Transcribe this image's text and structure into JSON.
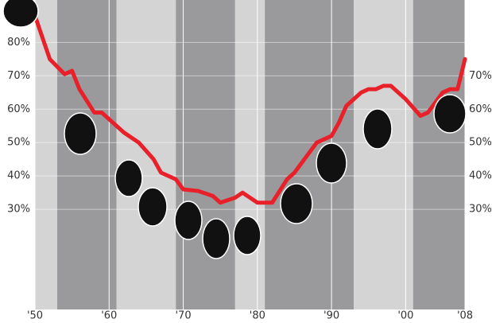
{
  "chart_data": {
    "type": "line",
    "x": [
      1950,
      1952,
      1954,
      1955,
      1956,
      1958,
      1959,
      1961,
      1962,
      1964,
      1966,
      1967,
      1969,
      1970,
      1972,
      1974,
      1975,
      1977,
      1978,
      1980,
      1982,
      1984,
      1985,
      1987,
      1988,
      1990,
      1991,
      1992,
      1994,
      1995,
      1996,
      1997,
      1998,
      1999,
      2000,
      2002,
      2003,
      2004,
      2005,
      2006,
      2007,
      2008
    ],
    "values": [
      88,
      75,
      70.5,
      71.5,
      66,
      59,
      59,
      55,
      53,
      50,
      45,
      41,
      39,
      36,
      35.5,
      34,
      32,
      33.5,
      35,
      32,
      32,
      39,
      41,
      47,
      50,
      52,
      56,
      61,
      65,
      66,
      66,
      67,
      67,
      65,
      63,
      58,
      59,
      62,
      65,
      66,
      66,
      75
    ],
    "color": "#e8202a",
    "xlim": [
      1950,
      2008
    ],
    "ylim": [
      0,
      92
    ],
    "xticks": [
      {
        "value": 1950,
        "label": "'50"
      },
      {
        "value": 1960,
        "label": "'60"
      },
      {
        "value": 1970,
        "label": "'70"
      },
      {
        "value": 1980,
        "label": "'80"
      },
      {
        "value": 1990,
        "label": "'90"
      },
      {
        "value": 2000,
        "label": "'00"
      },
      {
        "value": 2008,
        "label": "'08"
      }
    ],
    "yticks": [
      {
        "value": 80,
        "label": "80%"
      },
      {
        "value": 70,
        "label": "70%"
      },
      {
        "value": 60,
        "label": "60%"
      },
      {
        "value": 50,
        "label": "50%"
      },
      {
        "value": 40,
        "label": "40%"
      },
      {
        "value": 30,
        "label": "30%"
      }
    ],
    "y2lim": [
      0,
      92
    ],
    "y2ticks": [
      {
        "value": 70,
        "label": "70%"
      },
      {
        "value": 60,
        "label": "60%"
      },
      {
        "value": 50,
        "label": "50%"
      },
      {
        "value": 40,
        "label": "40%"
      },
      {
        "value": 30,
        "label": "30%"
      }
    ],
    "bands": [
      {
        "start": 1950,
        "end": 1953,
        "color": "#d4d4d4"
      },
      {
        "start": 1953,
        "end": 1961,
        "color": "#9a9a9c"
      },
      {
        "start": 1961,
        "end": 1969,
        "color": "#d4d4d4"
      },
      {
        "start": 1969,
        "end": 1977,
        "color": "#9a9a9c"
      },
      {
        "start": 1977,
        "end": 1981,
        "color": "#d4d4d4"
      },
      {
        "start": 1981,
        "end": 1993,
        "color": "#9a9a9c"
      },
      {
        "start": 1993,
        "end": 2001,
        "color": "#d4d4d4"
      },
      {
        "start": 2001,
        "end": 2008,
        "color": "#9a9a9c"
      }
    ]
  }
}
